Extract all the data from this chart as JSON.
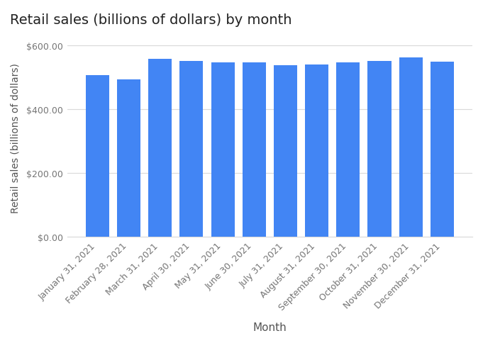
{
  "title": "Retail sales (billions of dollars) by month",
  "xlabel": "Month",
  "ylabel": "Retail sales (billions of dollars)",
  "categories": [
    "January 31, 2021",
    "February 28, 2021",
    "March 31, 2021",
    "April 30, 2021",
    "May 31, 2021",
    "June 30, 2021",
    "July 31, 2021",
    "August 31, 2021",
    "September 30, 2021",
    "October 31, 2021",
    "November 30, 2021",
    "December 31, 2021"
  ],
  "values": [
    507,
    494,
    558,
    552,
    547,
    546,
    538,
    540,
    547,
    552,
    562,
    550
  ],
  "bar_color": "#4285f4",
  "ylim": [
    0,
    625
  ],
  "yticks": [
    0,
    200,
    400,
    600
  ],
  "ytick_labels": [
    "$0.00",
    "$200.00",
    "$400.00",
    "$600.00"
  ],
  "background_color": "#ffffff",
  "grid_color": "#d9d9d9",
  "title_fontsize": 14,
  "axis_label_fontsize": 11,
  "tick_fontsize": 9,
  "bar_width": 0.75
}
